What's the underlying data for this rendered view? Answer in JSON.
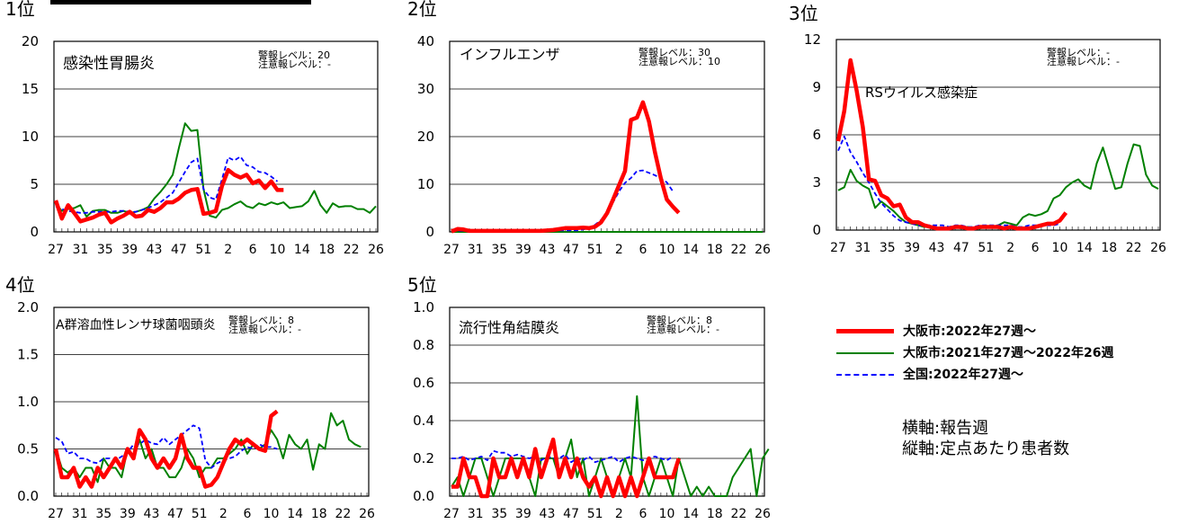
{
  "header_bar_color": "#000000",
  "ranks": [
    "1位",
    "2位",
    "3位",
    "4位",
    "5位"
  ],
  "legend": [
    {
      "label": "大阪市:2022年27週～",
      "color": "#ff0000",
      "style": "solid-thick"
    },
    {
      "label": "大阪市:2021年27週～2022年26週",
      "color": "#008000",
      "style": "solid"
    },
    {
      "label": "全国:2022年27週～",
      "color": "#0000ff",
      "style": "dashed"
    }
  ],
  "axis_notes": {
    "x": "横軸:報告週",
    "y": "縦軸:定点あたり患者数"
  },
  "week_labels": [
    "27",
    "31",
    "35",
    "39",
    "43",
    "47",
    "51",
    "2",
    "6",
    "10",
    "14",
    "18",
    "22",
    "26"
  ],
  "chart_data": [
    {
      "type": "line",
      "title": "感染性胃腸炎",
      "alert": "警報レベル：20",
      "warning": "注意報レベル：-",
      "ylim": [
        0,
        20
      ],
      "yticks": [
        "0",
        "5",
        "10",
        "15",
        "20"
      ],
      "series": [
        {
          "name": "大阪市:2021年27週～2022年26週",
          "color": "#008000",
          "values": [
            3.0,
            2.2,
            2.4,
            2.5,
            2.8,
            1.6,
            2.2,
            2.3,
            2.3,
            2.0,
            2.0,
            2.2,
            2.0,
            2.1,
            2.3,
            2.6,
            3.5,
            4.2,
            5.0,
            6.0,
            8.8,
            11.4,
            10.6,
            10.7,
            4.5,
            1.7,
            1.5,
            2.3,
            2.5,
            2.9,
            3.2,
            2.7,
            2.5,
            3.0,
            2.8,
            3.1,
            2.9,
            3.1,
            2.5,
            2.6,
            2.7,
            3.2,
            4.3,
            2.8,
            2.0,
            3.0,
            2.6,
            2.7,
            2.7,
            2.4,
            2.4,
            2.0,
            2.7
          ]
        },
        {
          "name": "全国:2022年27週～",
          "color": "#0000ff",
          "values": [
            2.7,
            2.4,
            2.2,
            2.1,
            2.0,
            2.0,
            2.1,
            2.1,
            2.1,
            2.1,
            2.2,
            2.2,
            2.1,
            2.1,
            2.3,
            2.5,
            2.8,
            3.1,
            3.6,
            4.1,
            5.2,
            6.3,
            7.3,
            7.7,
            4.5,
            3.6,
            3.4,
            5.5,
            7.8,
            7.5,
            7.9,
            7.0,
            6.8,
            6.3,
            6.2,
            5.8,
            5.3
          ]
        },
        {
          "name": "大阪市:2022年27週～",
          "color": "#ff0000",
          "values": [
            3.3,
            1.4,
            2.8,
            2.0,
            1.1,
            1.3,
            1.5,
            1.8,
            2.0,
            1.0,
            1.4,
            1.7,
            2.1,
            1.6,
            1.7,
            2.3,
            2.1,
            2.5,
            3.1,
            3.1,
            3.5,
            4.1,
            4.4,
            4.5,
            1.9,
            2.0,
            2.2,
            4.8,
            6.5,
            6.0,
            5.7,
            6.0,
            5.1,
            5.4,
            4.6,
            5.3,
            4.4,
            4.4
          ]
        }
      ]
    },
    {
      "type": "line",
      "title": "インフルエンザ",
      "alert": "警報レベル：30",
      "warning": "注意報レベル：10",
      "ylim": [
        0,
        40
      ],
      "yticks": [
        "0",
        "10",
        "20",
        "30",
        "40"
      ],
      "series": [
        {
          "name": "大阪市:2021年27週～2022年26週",
          "color": "#008000",
          "values": [
            0,
            0,
            0,
            0,
            0,
            0,
            0,
            0,
            0,
            0,
            0,
            0,
            0,
            0,
            0,
            0,
            0,
            0,
            0,
            0,
            0,
            0,
            0,
            0,
            0,
            0,
            0,
            0,
            0,
            0,
            0,
            0,
            0,
            0,
            0,
            0,
            0,
            0,
            0,
            0,
            0,
            0,
            0,
            0,
            0,
            0,
            0,
            0,
            0,
            0,
            0,
            0,
            0
          ]
        },
        {
          "name": "全国:2022年27週～",
          "color": "#0000ff",
          "values": [
            0.2,
            0.2,
            0.2,
            0.2,
            0.2,
            0.2,
            0.2,
            0.2,
            0.2,
            0.2,
            0.2,
            0.2,
            0.2,
            0.2,
            0.2,
            0.2,
            0.2,
            0.2,
            0.3,
            0.3,
            0.3,
            0.3,
            0.5,
            0.8,
            1.5,
            2.5,
            4.2,
            6.2,
            8.5,
            10.3,
            11.3,
            12.8,
            12.9,
            12.4,
            11.9,
            11.2,
            10.4,
            8.5
          ]
        },
        {
          "name": "大阪市:2022年27週～",
          "color": "#ff0000",
          "values": [
            0.1,
            0.6,
            0.5,
            0.2,
            0.2,
            0.2,
            0.2,
            0.2,
            0.2,
            0.2,
            0.2,
            0.2,
            0.2,
            0.2,
            0.2,
            0.2,
            0.3,
            0.4,
            0.6,
            0.8,
            0.8,
            0.8,
            0.9,
            0.8,
            1.1,
            2.0,
            3.9,
            6.8,
            9.8,
            12.8,
            23.5,
            24.0,
            27.2,
            23.2,
            16.8,
            11.2,
            6.8,
            5.3,
            4.0
          ]
        }
      ]
    },
    {
      "type": "line",
      "title": "RSウイルス感染症",
      "alert": "警報レベル：-",
      "warning": "注意報レベル：-",
      "ylim": [
        0,
        12
      ],
      "yticks": [
        "0",
        "3",
        "6",
        "9",
        "12"
      ],
      "series": [
        {
          "name": "大阪市:2021年27週～2022年26週",
          "color": "#008000",
          "values": [
            2.5,
            2.7,
            3.8,
            3.1,
            2.8,
            2.6,
            1.4,
            1.8,
            1.5,
            1.2,
            0.8,
            0.5,
            0.4,
            0.3,
            0.2,
            0.2,
            0.1,
            0.1,
            0.2,
            0.2,
            0.1,
            0.2,
            0.1,
            0.1,
            0.2,
            0.2,
            0.3,
            0.5,
            0.4,
            0.3,
            0.8,
            1.0,
            0.9,
            1.0,
            1.2,
            2.0,
            2.2,
            2.7,
            3.0,
            3.2,
            2.8,
            2.6,
            4.2,
            5.2,
            3.9,
            2.6,
            2.7,
            4.2,
            5.4,
            5.3,
            3.5,
            2.8,
            2.6
          ]
        },
        {
          "name": "全国:2022年27週～",
          "color": "#0000ff",
          "values": [
            5.0,
            5.9,
            4.9,
            4.3,
            3.6,
            3.0,
            2.3,
            1.7,
            1.3,
            0.9,
            0.6,
            0.5,
            0.4,
            0.3,
            0.3,
            0.3,
            0.3,
            0.3,
            0.2,
            0.3,
            0.3,
            0.2,
            0.2,
            0.3,
            0.3,
            0.3,
            0.3,
            0.3,
            0.3,
            0.2,
            0.2,
            0.3,
            0.3,
            0.3,
            0.3,
            0.3,
            0.4
          ]
        },
        {
          "name": "大阪市:2022年27週～",
          "color": "#ff0000",
          "values": [
            5.6,
            7.5,
            10.7,
            8.8,
            6.5,
            3.2,
            3.1,
            2.2,
            2.0,
            1.5,
            1.6,
            0.8,
            0.5,
            0.5,
            0.3,
            0.2,
            0.1,
            0.1,
            0.1,
            0.2,
            0.2,
            0.1,
            0.1,
            0.2,
            0.2,
            0.2,
            0.2,
            0.1,
            0.2,
            0.1,
            0.1,
            0.1,
            0.2,
            0.3,
            0.4,
            0.4,
            0.6,
            1.1
          ]
        }
      ]
    },
    {
      "type": "line",
      "title": "A群溶血性レンサ球菌咽頭炎",
      "alert": "警報レベル：8",
      "warning": "注意報レベル：-",
      "ylim": [
        0,
        2
      ],
      "yticks": [
        "0.0",
        "0.5",
        "1.0",
        "1.5",
        "2.0"
      ],
      "series": [
        {
          "name": "大阪市:2021年27週～2022年26週",
          "color": "#008000",
          "values": [
            0.5,
            0.3,
            0.25,
            0.3,
            0.2,
            0.3,
            0.3,
            0.15,
            0.4,
            0.3,
            0.3,
            0.2,
            0.5,
            0.4,
            0.6,
            0.4,
            0.5,
            0.3,
            0.3,
            0.2,
            0.2,
            0.3,
            0.5,
            0.4,
            0.2,
            0.3,
            0.3,
            0.4,
            0.4,
            0.45,
            0.5,
            0.6,
            0.45,
            0.55,
            0.5,
            0.55,
            0.7,
            0.6,
            0.4,
            0.65,
            0.55,
            0.5,
            0.6,
            0.28,
            0.55,
            0.5,
            0.88,
            0.75,
            0.8,
            0.6,
            0.55,
            0.52
          ]
        },
        {
          "name": "全国:2022年27週～",
          "color": "#0000ff",
          "values": [
            0.62,
            0.58,
            0.45,
            0.47,
            0.4,
            0.4,
            0.36,
            0.35,
            0.4,
            0.4,
            0.38,
            0.42,
            0.46,
            0.55,
            0.55,
            0.6,
            0.56,
            0.55,
            0.62,
            0.55,
            0.6,
            0.65,
            0.7,
            0.75,
            0.72,
            0.38,
            0.3,
            0.35,
            0.38,
            0.4,
            0.42,
            0.48,
            0.52,
            0.5,
            0.55,
            0.52,
            0.52,
            0.5
          ]
        },
        {
          "name": "大阪市:2022年27週～",
          "color": "#ff0000",
          "values": [
            0.5,
            0.2,
            0.2,
            0.3,
            0.1,
            0.2,
            0.1,
            0.3,
            0.2,
            0.3,
            0.4,
            0.3,
            0.5,
            0.4,
            0.7,
            0.6,
            0.4,
            0.3,
            0.4,
            0.3,
            0.4,
            0.65,
            0.4,
            0.3,
            0.3,
            0.1,
            0.12,
            0.2,
            0.35,
            0.5,
            0.6,
            0.55,
            0.6,
            0.55,
            0.5,
            0.48,
            0.85,
            0.9
          ]
        }
      ]
    },
    {
      "type": "line",
      "title": "流行性角結膜炎",
      "alert": "警報レベル：8",
      "warning": "注意報レベル：-",
      "ylim": [
        0,
        1
      ],
      "yticks": [
        "0.0",
        "0.2",
        "0.4",
        "0.6",
        "0.8",
        "1.0"
      ],
      "series": [
        {
          "name": "大阪市:2021年27週～2022年26週",
          "color": "#008000",
          "values": [
            0.05,
            0.1,
            0.0,
            0.1,
            0.2,
            0.2,
            0.1,
            0.0,
            0.1,
            0.2,
            0.2,
            0.2,
            0.2,
            0.1,
            0.0,
            0.2,
            0.2,
            0.2,
            0.1,
            0.2,
            0.3,
            0.1,
            0.2,
            0.0,
            0.1,
            0.2,
            0.1,
            0.0,
            0.1,
            0.2,
            0.1,
            0.53,
            0.1,
            0.0,
            0.1,
            0.2,
            0.1,
            0.0,
            0.2,
            0.1,
            0.0,
            0.05,
            0.0,
            0.05,
            0.0,
            0.0,
            0.0,
            0.1,
            0.15,
            0.2,
            0.25,
            0.0,
            0.2,
            0.25
          ]
        },
        {
          "name": "全国:2022年27週～",
          "color": "#0000ff",
          "values": [
            0.2,
            0.2,
            0.21,
            0.19,
            0.2,
            0.21,
            0.19,
            0.24,
            0.23,
            0.23,
            0.21,
            0.22,
            0.21,
            0.2,
            0.21,
            0.19,
            0.21,
            0.2,
            0.2,
            0.22,
            0.18,
            0.2,
            0.19,
            0.21,
            0.18,
            0.19,
            0.2,
            0.21,
            0.18,
            0.2,
            0.21,
            0.2,
            0.19,
            0.2,
            0.21,
            0.2,
            0.19,
            0.21
          ]
        },
        {
          "name": "大阪市:2022年27週～",
          "color": "#ff0000",
          "values": [
            0.05,
            0.05,
            0.2,
            0.1,
            0.1,
            0.0,
            0.0,
            0.2,
            0.1,
            0.1,
            0.2,
            0.1,
            0.2,
            0.1,
            0.25,
            0.1,
            0.2,
            0.3,
            0.1,
            0.2,
            0.1,
            0.2,
            0.1,
            0.05,
            0.1,
            0.0,
            0.1,
            0.0,
            0.1,
            0.0,
            0.1,
            0.0,
            0.1,
            0.2,
            0.1,
            0.1,
            0.1,
            0.1,
            0.2
          ]
        }
      ]
    }
  ]
}
